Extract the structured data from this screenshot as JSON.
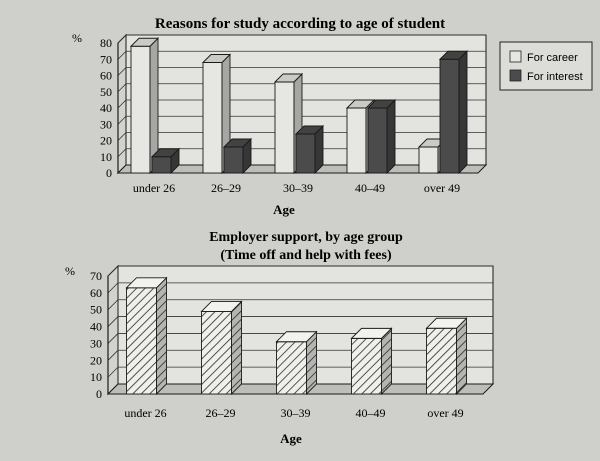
{
  "chart_data": [
    {
      "type": "bar",
      "title": "Reasons for study according to age of student",
      "xlabel": "Age",
      "ylabel": "%",
      "ylim": [
        0,
        80
      ],
      "yticks": [
        0,
        10,
        20,
        30,
        40,
        50,
        60,
        70,
        80
      ],
      "grid": true,
      "legend": "right",
      "categories": [
        "under 26",
        "26–29",
        "30–39",
        "40–49",
        "over 49"
      ],
      "series": [
        {
          "name": "For career",
          "color": "#e6e6e2",
          "values": [
            78,
            68,
            56,
            40,
            16
          ]
        },
        {
          "name": "For interest",
          "color": "#4b4b4b",
          "values": [
            10,
            16,
            24,
            40,
            70
          ]
        }
      ]
    },
    {
      "type": "bar",
      "title": "Employer support, by age group",
      "subtitle": "(Time off and help with fees)",
      "xlabel": "Age",
      "ylabel": "%",
      "ylim": [
        0,
        70
      ],
      "yticks": [
        0,
        10,
        20,
        30,
        40,
        50,
        60,
        70
      ],
      "grid": true,
      "categories": [
        "under 26",
        "26–29",
        "30–39",
        "40–49",
        "over 49"
      ],
      "series": [
        {
          "color": "#e9e9e5",
          "values": [
            63,
            49,
            31,
            33,
            39
          ]
        }
      ]
    }
  ]
}
